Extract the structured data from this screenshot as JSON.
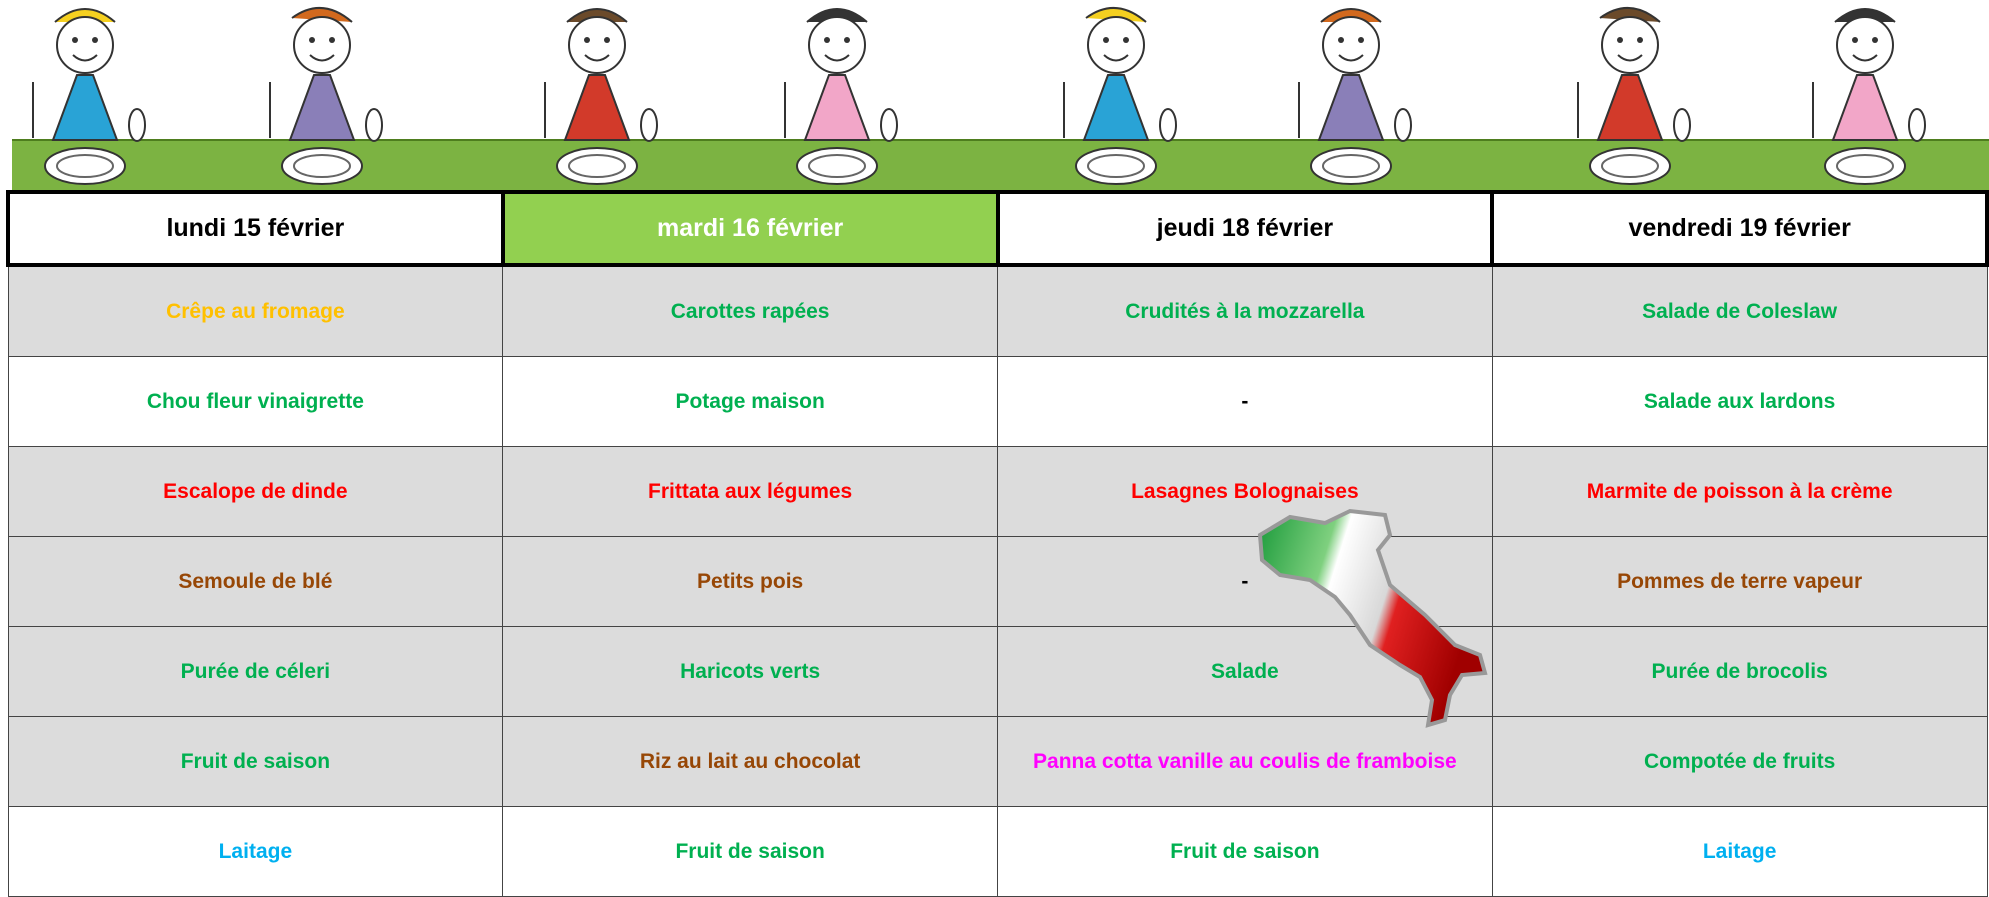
{
  "header": {
    "days": [
      "lundi 15 février",
      "mardi 16 février",
      "jeudi 18 février",
      "vendredi 19 février"
    ]
  },
  "table": {
    "rows": [
      [
        "Crêpe au fromage",
        "Carottes rapées",
        "Crudités à la mozzarella",
        "Salade de Coleslaw"
      ],
      [
        "Chou fleur vinaigrette",
        "Potage maison",
        "-",
        "Salade aux lardons"
      ],
      [
        "Escalope de dinde",
        "Frittata aux légumes",
        "Lasagnes Bolognaises",
        "Marmite de poisson à la crème"
      ],
      [
        "Semoule de blé",
        "Petits pois",
        "-",
        "Pommes de terre vapeur"
      ],
      [
        "Purée de céleri",
        "Haricots verts",
        "Salade",
        "Purée de brocolis"
      ],
      [
        "Fruit de saison",
        "Riz au lait au chocolat",
        "Panna cotta vanille au coulis de framboise",
        "Compotée de fruits"
      ],
      [
        "Laitage",
        "Fruit de saison",
        "Fruit de saison",
        "Laitage"
      ]
    ]
  }
}
